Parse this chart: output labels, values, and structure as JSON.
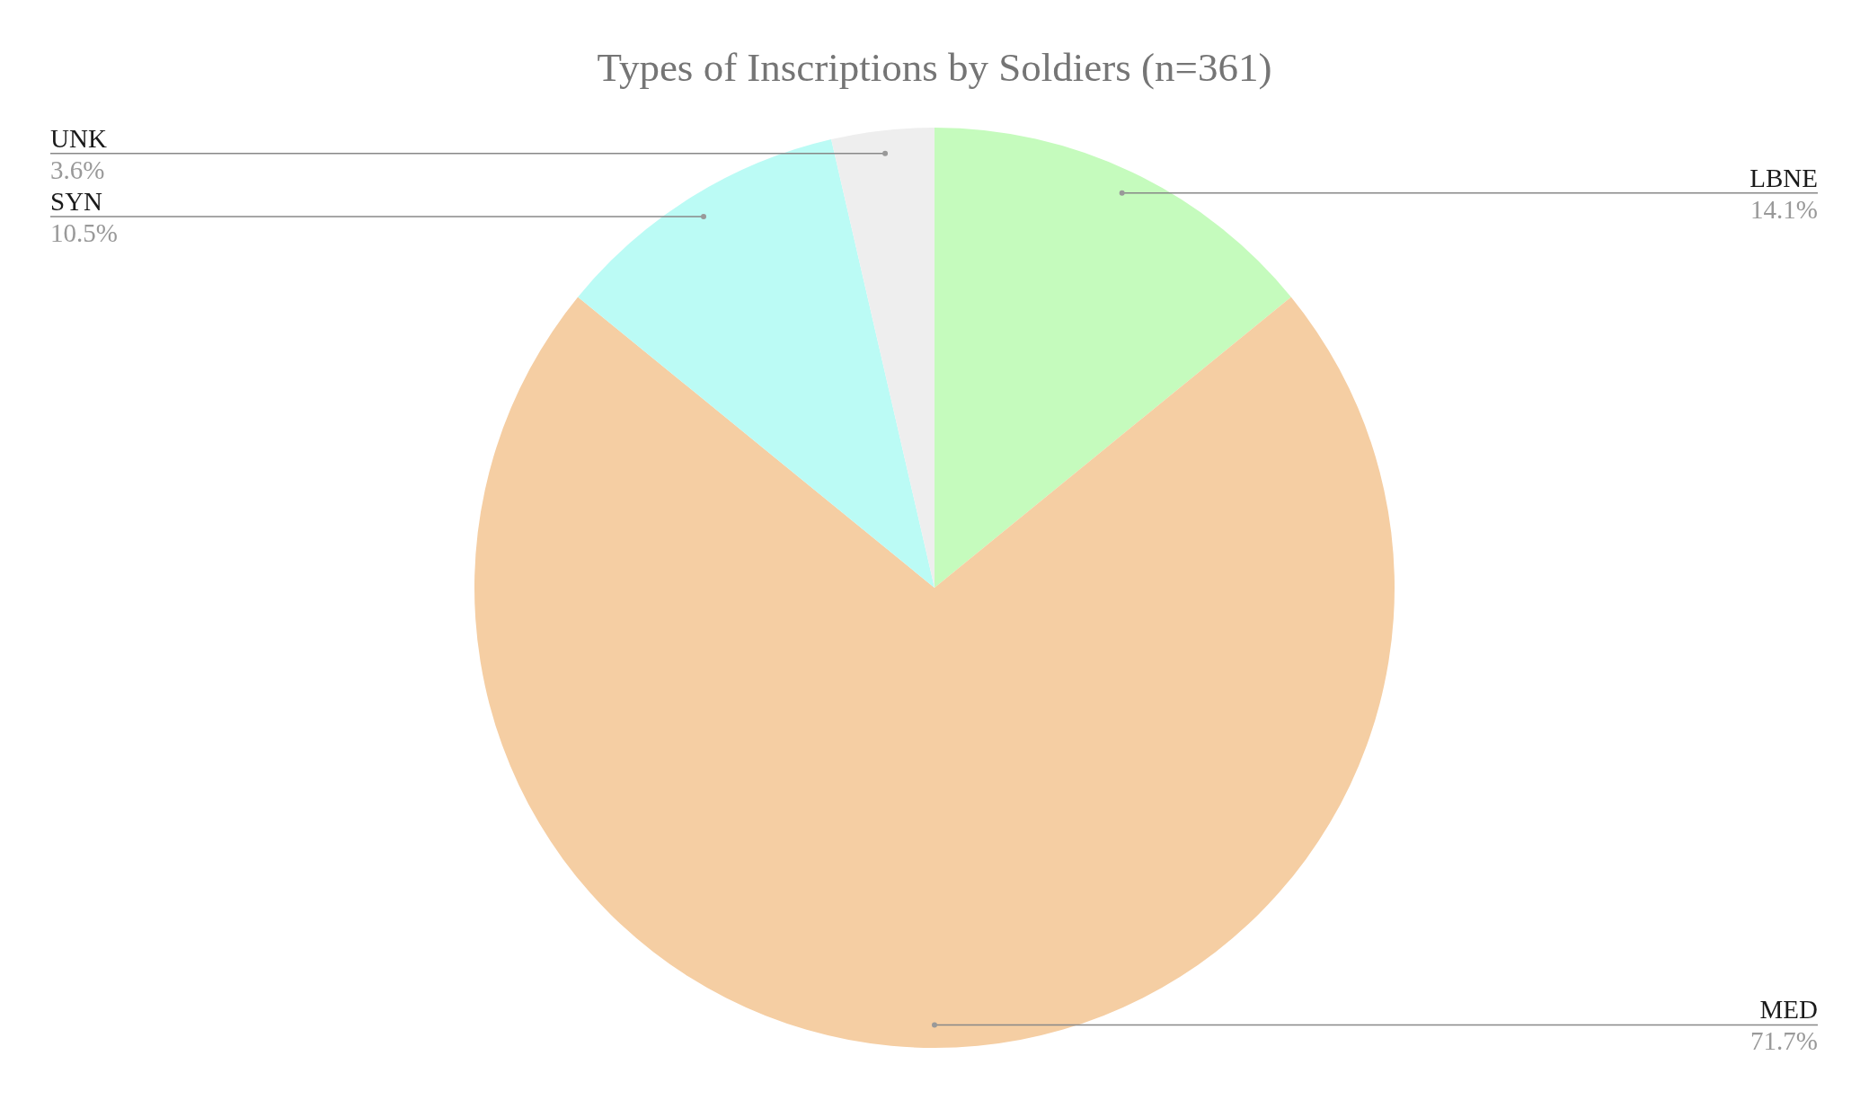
{
  "chart_data": {
    "type": "pie",
    "title": "Types of Inscriptions by Soldiers (n=361)",
    "categories": [
      "LBNE",
      "MED",
      "SYN",
      "UNK"
    ],
    "values": [
      14.1,
      71.7,
      10.5,
      3.6
    ],
    "value_labels": [
      "14.1%",
      "71.7%",
      "10.5%",
      "3.6%"
    ],
    "colors": [
      "#c5fbbd",
      "#f5cea3",
      "#bbfbf5",
      "#eeeeee"
    ]
  }
}
